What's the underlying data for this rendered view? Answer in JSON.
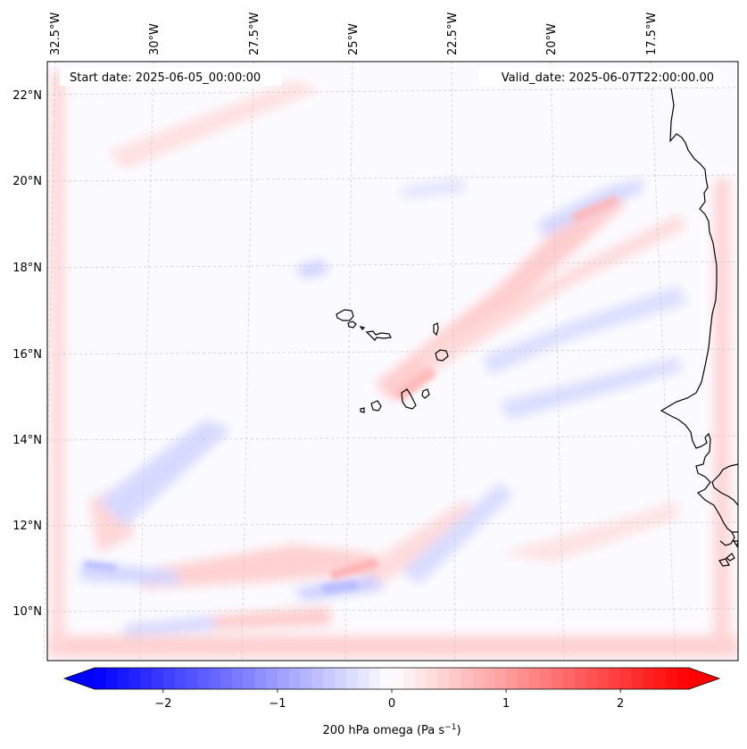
{
  "map": {
    "start_date": "Start date: 2025-06-05_00:00:00",
    "valid_date": "Valid_date: 2025-06-07T22:00:00.00",
    "lon_labels": [
      "32.5°W",
      "30°W",
      "27.5°W",
      "25°W",
      "22.5°W",
      "20°W",
      "17.5°W"
    ],
    "lat_labels": [
      "22°N",
      "20°N",
      "18°N",
      "16°N",
      "14°N",
      "12°N",
      "10°N"
    ],
    "gridlines": "on"
  },
  "colorbar": {
    "label": "200 hPa omega (Pa s",
    "label_sup": "−1",
    "label_end": ")",
    "tick_labels": [
      "−2",
      "−1",
      "0",
      "1",
      "2"
    ],
    "tick_values": [
      -2,
      -1,
      0,
      1,
      2
    ],
    "range": [
      -2.6,
      2.6
    ],
    "extend": "both",
    "colormap": "bwr",
    "color_min": "#0000ff",
    "color_mid": "#ffffff",
    "color_max": "#ff0000"
  },
  "colors": {
    "coastline": "#000000",
    "gridline": "#c8c8c8"
  }
}
